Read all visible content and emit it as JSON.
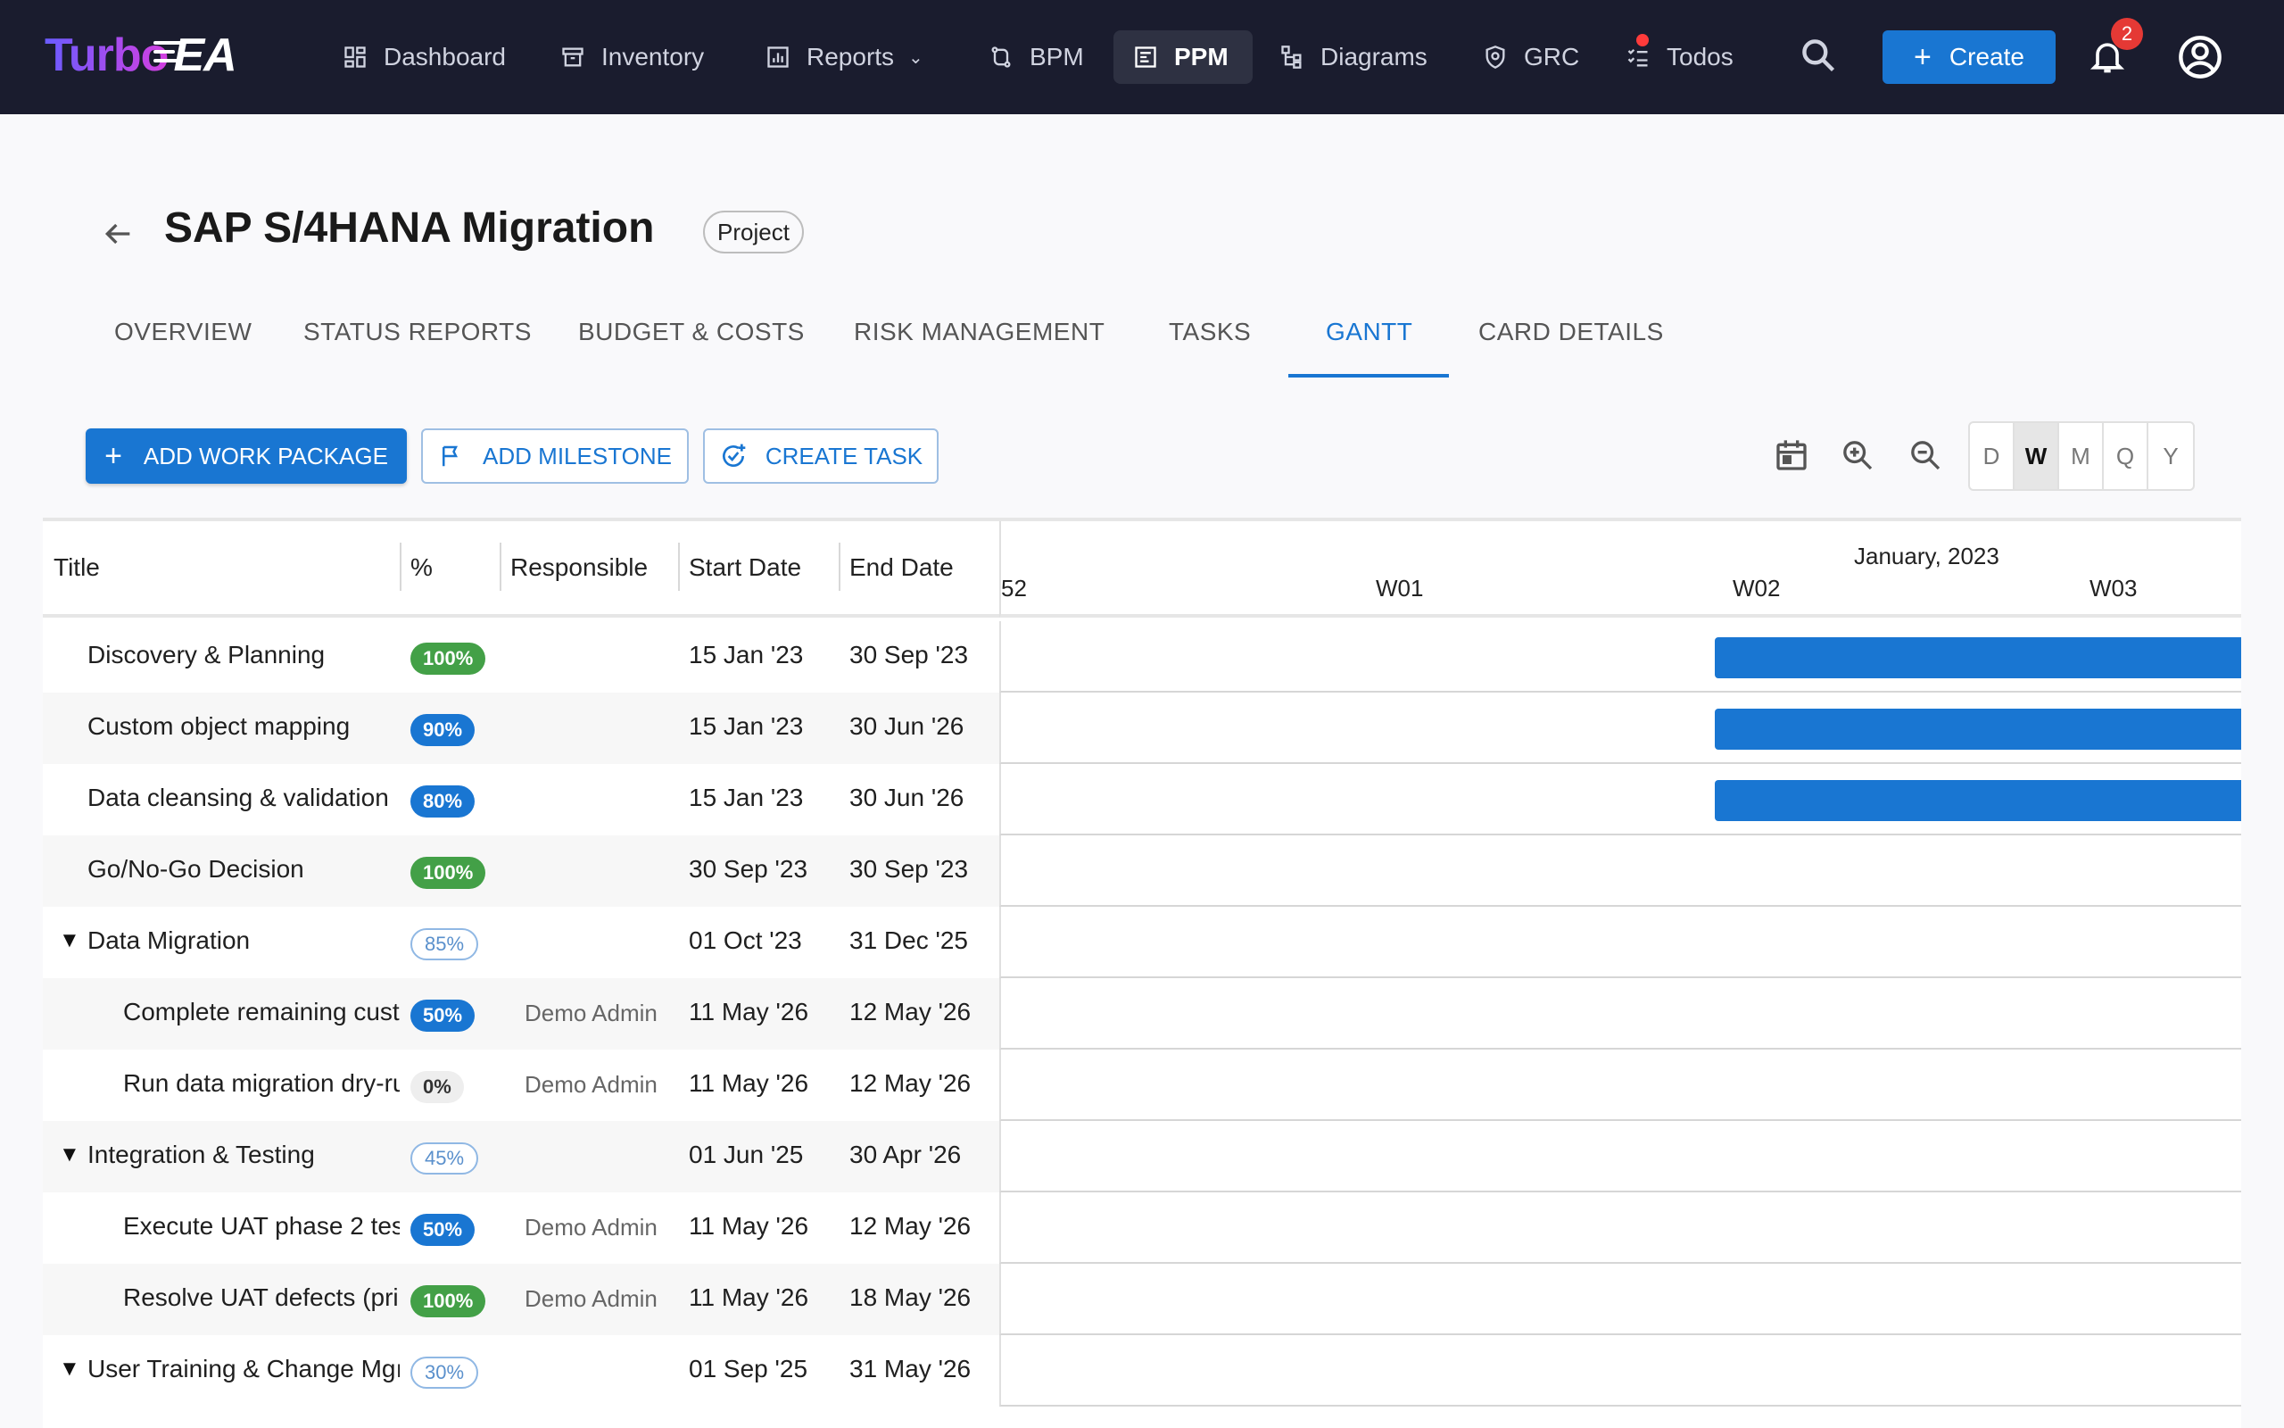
{
  "app": {
    "logo_left": "Turbo",
    "logo_right": "EA",
    "accent": "#1976d2",
    "nav_bg": "#1a1c2e"
  },
  "nav": {
    "items": [
      {
        "label": "Dashboard",
        "icon": "dashboard-icon"
      },
      {
        "label": "Inventory",
        "icon": "inventory-icon"
      },
      {
        "label": "Reports",
        "icon": "reports-icon"
      },
      {
        "label": "BPM",
        "icon": "bpm-icon"
      },
      {
        "label": "PPM",
        "icon": "ppm-icon",
        "active": true
      },
      {
        "label": "Diagrams",
        "icon": "diagrams-icon"
      },
      {
        "label": "GRC",
        "icon": "grc-icon"
      },
      {
        "label": "Todos",
        "icon": "todos-icon"
      }
    ],
    "create_label": "Create",
    "notification_count": "2"
  },
  "header": {
    "title": "SAP S/4HANA Migration",
    "type_chip": "Project"
  },
  "tabs": [
    {
      "label": "OVERVIEW"
    },
    {
      "label": "STATUS REPORTS"
    },
    {
      "label": "BUDGET & COSTS"
    },
    {
      "label": "RISK MANAGEMENT"
    },
    {
      "label": "TASKS"
    },
    {
      "label": "GANTT",
      "active": true
    },
    {
      "label": "CARD DETAILS"
    }
  ],
  "toolbar": {
    "add_work_package": "ADD WORK PACKAGE",
    "add_milestone": "ADD MILESTONE",
    "create_task": "CREATE TASK",
    "scales": [
      "D",
      "W",
      "M",
      "Q",
      "Y"
    ],
    "active_scale": "W"
  },
  "gantt": {
    "columns": {
      "title": "Title",
      "percent": "%",
      "responsible": "Responsible",
      "start": "Start Date",
      "end": "End Date"
    },
    "timeline": {
      "month": "January, 2023",
      "weeks": [
        "52",
        "W01",
        "W02",
        "W03"
      ]
    },
    "rows": [
      {
        "title": "Discovery & Planning",
        "pct": "100%",
        "pct_style": "green",
        "responsible": "",
        "start": "15 Jan '23",
        "end": "30 Sep '23",
        "level": 1,
        "group": false,
        "bar": true
      },
      {
        "title": "Custom object mapping",
        "pct": "90%",
        "pct_style": "blue",
        "responsible": "",
        "start": "15 Jan '23",
        "end": "30 Jun '26",
        "level": 1,
        "group": false,
        "bar": true
      },
      {
        "title": "Data cleansing & validation",
        "pct": "80%",
        "pct_style": "blue",
        "responsible": "",
        "start": "15 Jan '23",
        "end": "30 Jun '26",
        "level": 1,
        "group": false,
        "bar": true
      },
      {
        "title": "Go/No-Go Decision",
        "pct": "100%",
        "pct_style": "green",
        "responsible": "",
        "start": "30 Sep '23",
        "end": "30 Sep '23",
        "level": 1,
        "group": false,
        "bar": false
      },
      {
        "title": "Data Migration",
        "pct": "85%",
        "pct_style": "outline",
        "responsible": "",
        "start": "01 Oct '23",
        "end": "31 Dec '25",
        "level": 1,
        "group": true,
        "bar": false
      },
      {
        "title": "Complete remaining cust",
        "pct": "50%",
        "pct_style": "blue",
        "responsible": "Demo Admin",
        "start": "11 May '26",
        "end": "12 May '26",
        "level": 2,
        "group": false,
        "bar": false
      },
      {
        "title": "Run data migration dry-ru",
        "pct": "0%",
        "pct_style": "grey",
        "responsible": "Demo Admin",
        "start": "11 May '26",
        "end": "12 May '26",
        "level": 2,
        "group": false,
        "bar": false
      },
      {
        "title": "Integration & Testing",
        "pct": "45%",
        "pct_style": "outline",
        "responsible": "",
        "start": "01 Jun '25",
        "end": "30 Apr '26",
        "level": 1,
        "group": true,
        "bar": false
      },
      {
        "title": "Execute UAT phase 2 tes",
        "pct": "50%",
        "pct_style": "blue",
        "responsible": "Demo Admin",
        "start": "11 May '26",
        "end": "12 May '26",
        "level": 2,
        "group": false,
        "bar": false
      },
      {
        "title": "Resolve UAT defects (pri",
        "pct": "100%",
        "pct_style": "green",
        "responsible": "Demo Admin",
        "start": "11 May '26",
        "end": "18 May '26",
        "level": 2,
        "group": false,
        "bar": false
      },
      {
        "title": "User Training & Change Mgı",
        "pct": "30%",
        "pct_style": "outline",
        "responsible": "",
        "start": "01 Sep '25",
        "end": "31 May '26",
        "level": 1,
        "group": true,
        "bar": false
      }
    ]
  }
}
